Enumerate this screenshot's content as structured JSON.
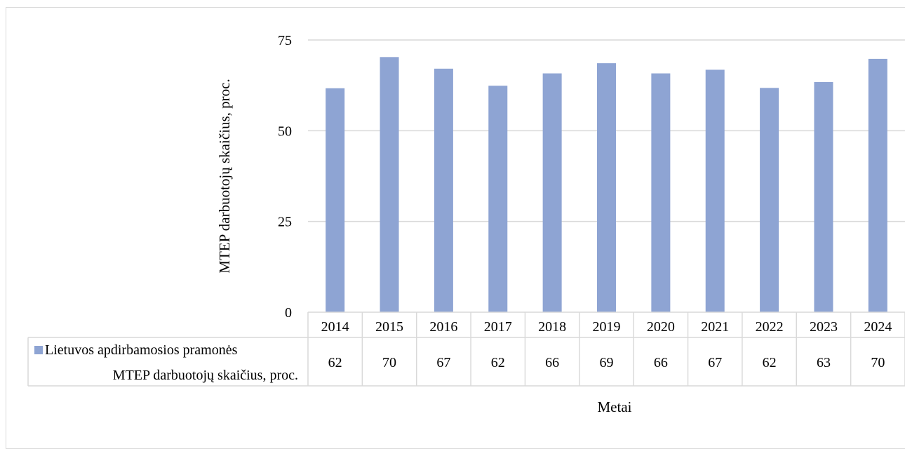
{
  "chart_data": {
    "type": "bar",
    "categories": [
      "2014",
      "2015",
      "2016",
      "2017",
      "2018",
      "2019",
      "2020",
      "2021",
      "2022",
      "2023",
      "2024"
    ],
    "series": [
      {
        "name": "Lietuvos apdirbamosios pramonės MTEP darbuotojų skaičius, proc.",
        "name_lines": [
          "Lietuvos apdirbamosios pramonės",
          "MTEP darbuotojų skaičius, proc."
        ],
        "values": [
          61.7,
          70.3,
          67.1,
          62.4,
          65.8,
          68.6,
          65.8,
          66.8,
          61.8,
          63.4,
          69.8
        ],
        "labels": [
          "62",
          "70",
          "67",
          "62",
          "66",
          "69",
          "66",
          "67",
          "62",
          "63",
          "70"
        ],
        "color": "#8ea4d3"
      }
    ],
    "xlabel": "Metai",
    "ylabel": "MTEP darbuotojų skaičius, proc.",
    "ylim": [
      0,
      75
    ],
    "yticks": [
      "0",
      "25",
      "50",
      "75"
    ],
    "grid": true,
    "data_table": true
  },
  "colors": {
    "bar": "#8ea4d3",
    "grid": "#d9d9d9",
    "table_border": "#d9d9d9"
  }
}
